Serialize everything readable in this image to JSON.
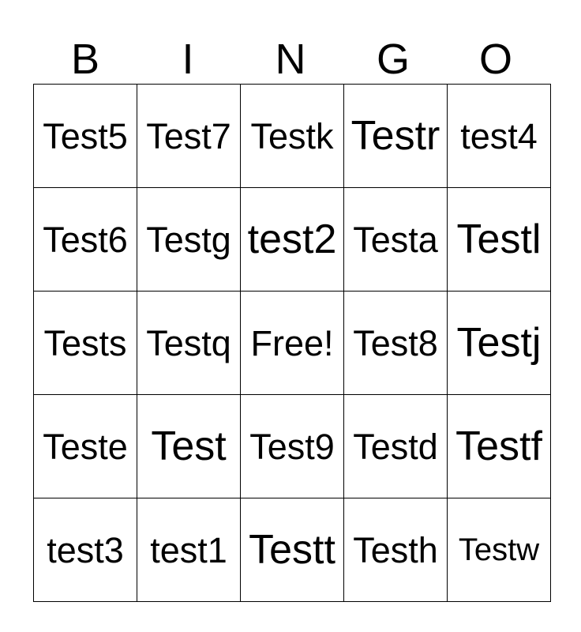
{
  "header": {
    "letters": [
      "B",
      "I",
      "N",
      "G",
      "O"
    ]
  },
  "grid": {
    "rows": [
      [
        "Test5",
        "Test7",
        "Testk",
        "Testr",
        "test4"
      ],
      [
        "Test6",
        "Testg",
        "test2",
        "Testa",
        "Testl"
      ],
      [
        "Tests",
        "Testq",
        "Free!",
        "Test8",
        "Testj"
      ],
      [
        "Teste",
        "Test",
        "Test9",
        "Testd",
        "Testf"
      ],
      [
        "test3",
        "test1",
        "Testt",
        "Testh",
        "Testw"
      ]
    ],
    "free_cell_label": "Free!"
  },
  "colors": {
    "background": "#ffffff",
    "text": "#000000",
    "border": "#000000"
  }
}
